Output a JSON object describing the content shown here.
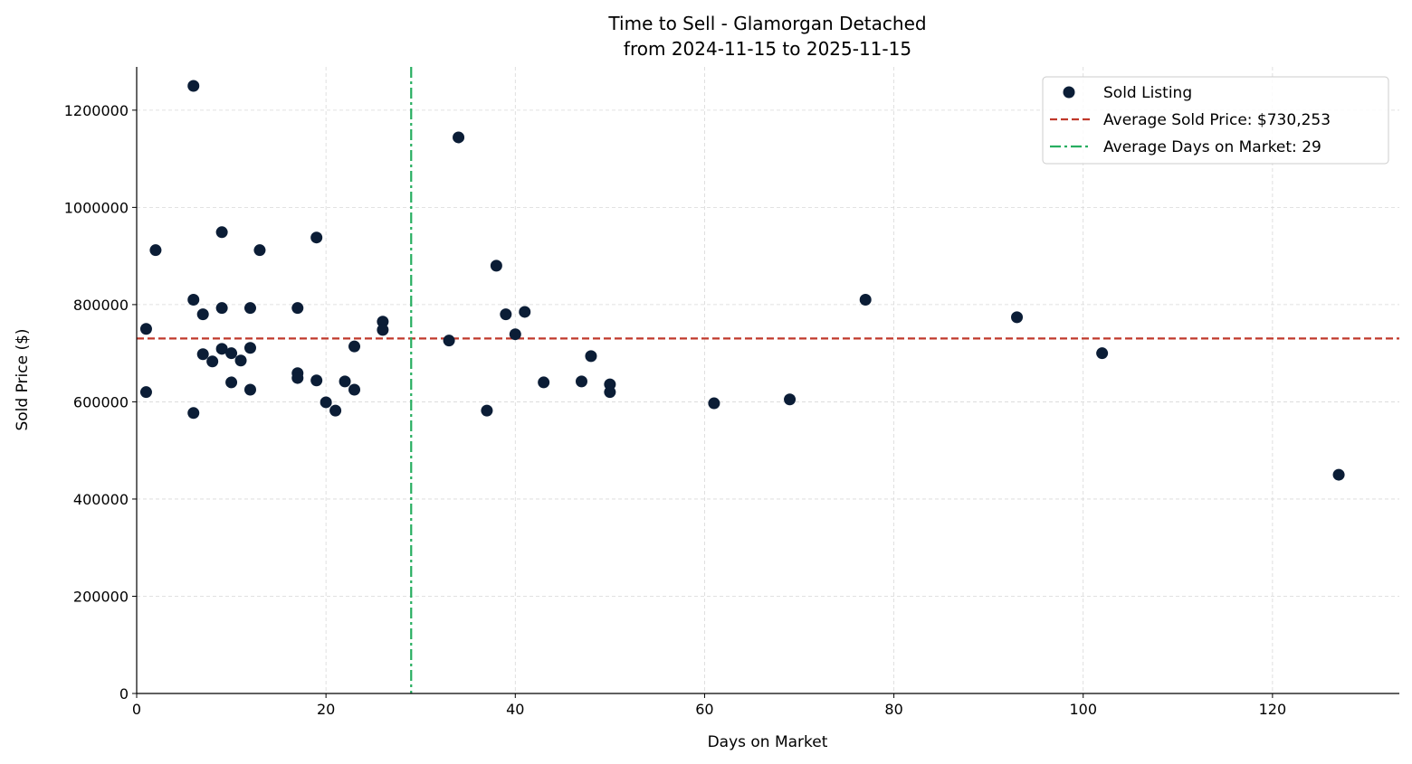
{
  "chart_data": {
    "type": "scatter",
    "title": "Time to Sell - Glamorgan Detached",
    "subtitle": "from 2024-11-15 to 2025-11-15",
    "xlabel": "Days on Market",
    "ylabel": "Sold Price ($)",
    "xlim": [
      0,
      133.4
    ],
    "ylim": [
      0,
      1289000
    ],
    "xticks": [
      0,
      20,
      40,
      60,
      80,
      100,
      120
    ],
    "yticks": [
      0,
      200000,
      400000,
      600000,
      800000,
      1000000,
      1200000
    ],
    "grid": true,
    "legend_position": "top-right",
    "series": [
      {
        "name": "Sold Listing",
        "color": "#0b1d36",
        "points": [
          [
            6,
            1250000
          ],
          [
            2,
            912000
          ],
          [
            1,
            750000
          ],
          [
            1,
            620000
          ],
          [
            6,
            810000
          ],
          [
            6,
            577000
          ],
          [
            7,
            780000
          ],
          [
            7,
            698000
          ],
          [
            8,
            683000
          ],
          [
            9,
            949000
          ],
          [
            9,
            793000
          ],
          [
            9,
            709000
          ],
          [
            10,
            700000
          ],
          [
            10,
            640000
          ],
          [
            11,
            685000
          ],
          [
            12,
            793000
          ],
          [
            12,
            711000
          ],
          [
            12,
            625000
          ],
          [
            13,
            912000
          ],
          [
            17,
            793000
          ],
          [
            17,
            659000
          ],
          [
            17,
            649000
          ],
          [
            19,
            938000
          ],
          [
            19,
            644000
          ],
          [
            20,
            599000
          ],
          [
            21,
            582000
          ],
          [
            22,
            642000
          ],
          [
            23,
            714000
          ],
          [
            23,
            625000
          ],
          [
            26,
            765000
          ],
          [
            26,
            748000
          ],
          [
            33,
            726000
          ],
          [
            34,
            1144000
          ],
          [
            37,
            582000
          ],
          [
            38,
            880000
          ],
          [
            39,
            780000
          ],
          [
            40,
            739000
          ],
          [
            41,
            785000
          ],
          [
            43,
            640000
          ],
          [
            47,
            642000
          ],
          [
            48,
            694000
          ],
          [
            50,
            636000
          ],
          [
            50,
            620000
          ],
          [
            61,
            597000
          ],
          [
            69,
            605000
          ],
          [
            77,
            810000
          ],
          [
            93,
            774000
          ],
          [
            102,
            700000
          ],
          [
            127,
            450000
          ]
        ]
      }
    ],
    "reference_lines": [
      {
        "orientation": "horizontal",
        "value": 730253,
        "label": "Average Sold Price: $730,253",
        "color": "#c0392b",
        "style": "dashed"
      },
      {
        "orientation": "vertical",
        "value": 29,
        "label": "Average Days on Market: 29",
        "color": "#27ae60",
        "style": "dashdot"
      }
    ]
  }
}
